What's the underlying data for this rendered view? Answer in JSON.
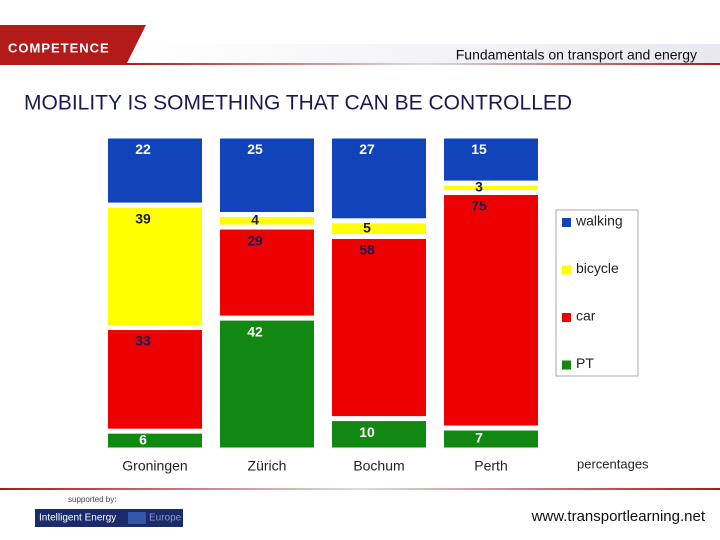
{
  "header": {
    "logo": "COMPETENCE",
    "subtitle": "Fundamentals on transport and energy"
  },
  "chart_data": {
    "type": "stacked_bar",
    "title": "MOBILITY IS SOMETHING THAT CAN BE CONTROLLED",
    "categories": [
      "Groningen",
      "Zürich",
      "Bochum",
      "Perth"
    ],
    "series": [
      {
        "name": "walking",
        "color": "#1144bb",
        "label_color": "#ffffff",
        "values": [
          22,
          25,
          27,
          15
        ]
      },
      {
        "name": "bicycle",
        "color": "#ffff00",
        "label_color": "#1a1a50",
        "values": [
          39,
          4,
          5,
          3
        ]
      },
      {
        "name": "car",
        "color": "#ee0000",
        "label_color": "#1a1a50",
        "values": [
          33,
          29,
          58,
          75
        ]
      },
      {
        "name": "PT",
        "color": "#118811",
        "label_color": "#ffffff",
        "values": [
          6,
          42,
          10,
          7
        ]
      }
    ],
    "stack_order": "bottom-up-reversed",
    "ylim": [
      0,
      100
    ],
    "unit_note": "percentages",
    "legend": "right"
  },
  "footer": {
    "supported_by": "supported by:",
    "logo_main": "Intelligent Energy",
    "logo_sub": "Europe",
    "url": "www.transportlearning.net"
  }
}
